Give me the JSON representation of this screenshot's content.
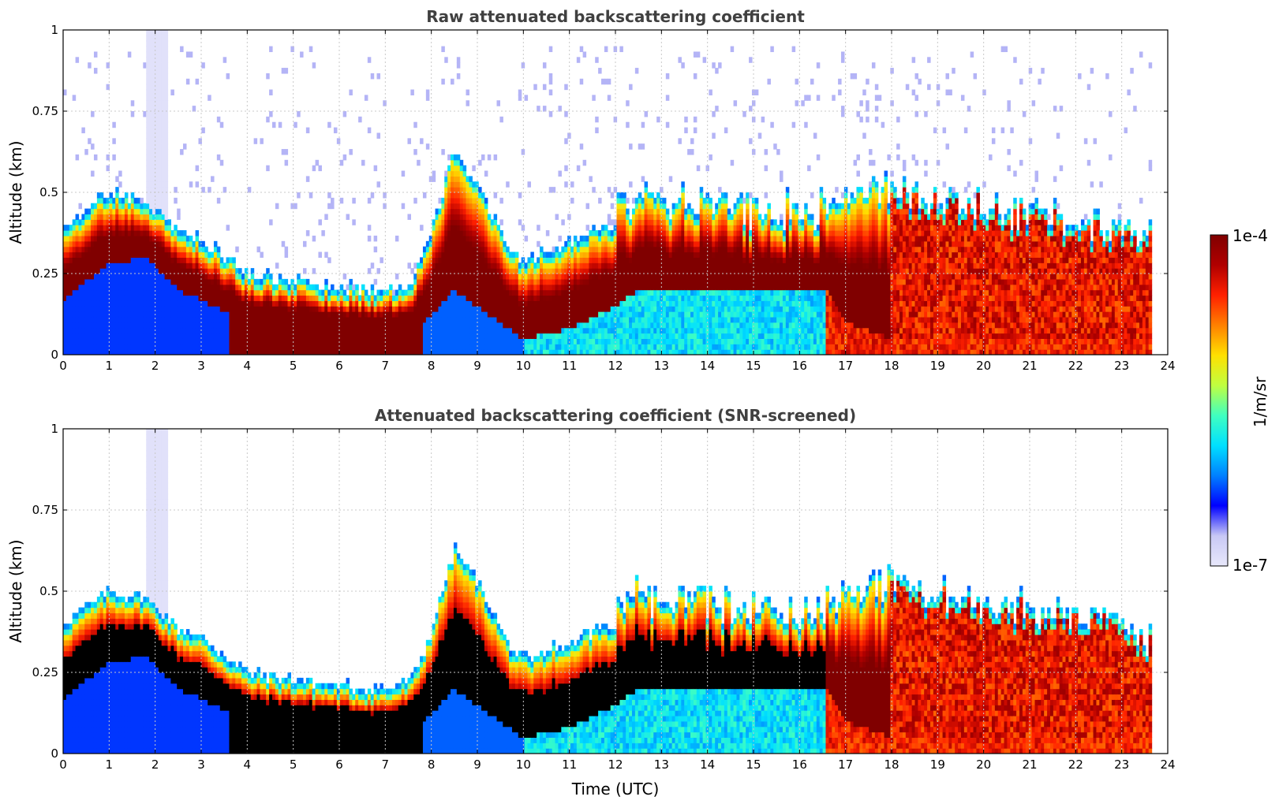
{
  "chart_data": [
    {
      "type": "heatmap",
      "title": "Raw attenuated backscattering coefficient",
      "xlabel": "",
      "ylabel": "Altitude (km)",
      "xlim": [
        0,
        24
      ],
      "ylim": [
        0,
        1
      ],
      "x_ticks": [
        "0",
        "1",
        "2",
        "3",
        "4",
        "5",
        "6",
        "7",
        "8",
        "9",
        "10",
        "11",
        "12",
        "13",
        "14",
        "15",
        "16",
        "17",
        "18",
        "19",
        "20",
        "21",
        "22",
        "23",
        "24"
      ],
      "y_ticks": [
        "0",
        "0.25",
        "0.5",
        "0.75",
        "1"
      ],
      "grid": true,
      "layer_profile": {
        "time_utc": [
          0,
          1,
          1.8,
          2.5,
          3,
          4,
          5,
          6,
          7,
          7.6,
          8,
          8.5,
          9,
          9.7,
          10,
          11,
          12,
          12.5,
          13,
          14,
          15,
          16,
          16.6,
          17,
          18,
          19,
          20,
          21,
          22,
          23,
          23.65
        ],
        "top_km": [
          0.37,
          0.47,
          0.45,
          0.36,
          0.33,
          0.22,
          0.2,
          0.18,
          0.17,
          0.2,
          0.35,
          0.6,
          0.5,
          0.3,
          0.26,
          0.32,
          0.37,
          0.42,
          0.4,
          0.38,
          0.37,
          0.36,
          0.38,
          0.42,
          0.45,
          0.4,
          0.38,
          0.36,
          0.34,
          0.3,
          0.28
        ],
        "base_km": [
          0.17,
          0.28,
          0.3,
          0.2,
          0.17,
          0.1,
          0.09,
          0.08,
          0.07,
          0.08,
          0.12,
          0.2,
          0.15,
          0.08,
          0.05,
          0.08,
          0.15,
          0.2,
          0.2,
          0.2,
          0.2,
          0.2,
          0.2,
          0.1,
          0.05,
          0.05,
          0.05,
          0.05,
          0.05,
          0.05,
          0.05
        ]
      },
      "data_end_utc": 23.65
    },
    {
      "type": "heatmap",
      "title": "Attenuated backscattering coefficient (SNR-screened)",
      "xlabel": "Time (UTC)",
      "ylabel": "Altitude (km)",
      "xlim": [
        0,
        24
      ],
      "ylim": [
        0,
        1
      ],
      "x_ticks": [
        "0",
        "1",
        "2",
        "3",
        "4",
        "5",
        "6",
        "7",
        "8",
        "9",
        "10",
        "11",
        "12",
        "13",
        "14",
        "15",
        "16",
        "17",
        "18",
        "19",
        "20",
        "21",
        "22",
        "23",
        "24"
      ],
      "y_ticks": [
        "0",
        "0.25",
        "0.5",
        "0.75",
        "1"
      ],
      "grid": true,
      "screened_color": "#000000",
      "data_end_utc": 23.65
    }
  ],
  "colorbar": {
    "max_label": "1e-4",
    "min_label": "1e-7",
    "unit_label": "1/m/sr",
    "scale": "log",
    "range": [
      1e-07,
      0.0001
    ],
    "colormap": [
      "#e8e8fb",
      "#c8c8f5",
      "#0000ff",
      "#0080ff",
      "#00e0ff",
      "#40ffc0",
      "#c0ff40",
      "#ffe000",
      "#ff8000",
      "#ff2000",
      "#b00000",
      "#800000"
    ]
  }
}
